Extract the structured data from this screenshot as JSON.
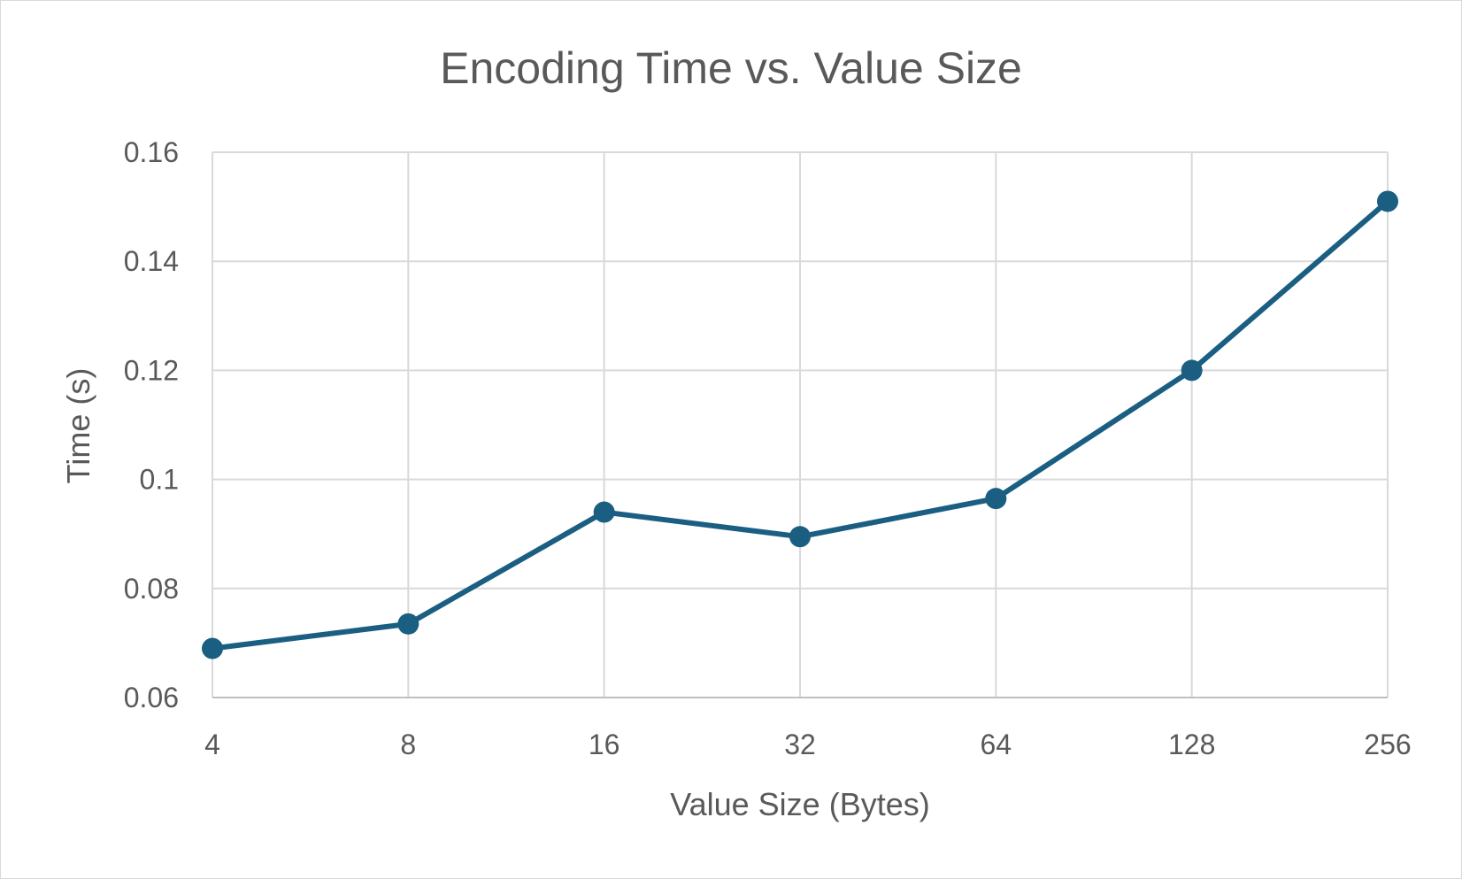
{
  "chart_data": {
    "type": "line",
    "title": "Encoding Time vs. Value Size",
    "xlabel": "Value Size (Bytes)",
    "ylabel": "Time (s)",
    "categories": [
      "4",
      "8",
      "16",
      "32",
      "64",
      "128",
      "256"
    ],
    "series": [
      {
        "values": [
          0.069,
          0.0735,
          0.094,
          0.0895,
          0.0965,
          0.12,
          0.151
        ],
        "color": "#1a5e82"
      }
    ],
    "ylim": [
      0.06,
      0.16
    ],
    "yticks": [
      "0.06",
      "0.08",
      "0.1",
      "0.12",
      "0.14",
      "0.16"
    ],
    "ytick_values": [
      0.06,
      0.08,
      0.1,
      0.12,
      0.14,
      0.16
    ],
    "grid": true,
    "legend": "none"
  }
}
